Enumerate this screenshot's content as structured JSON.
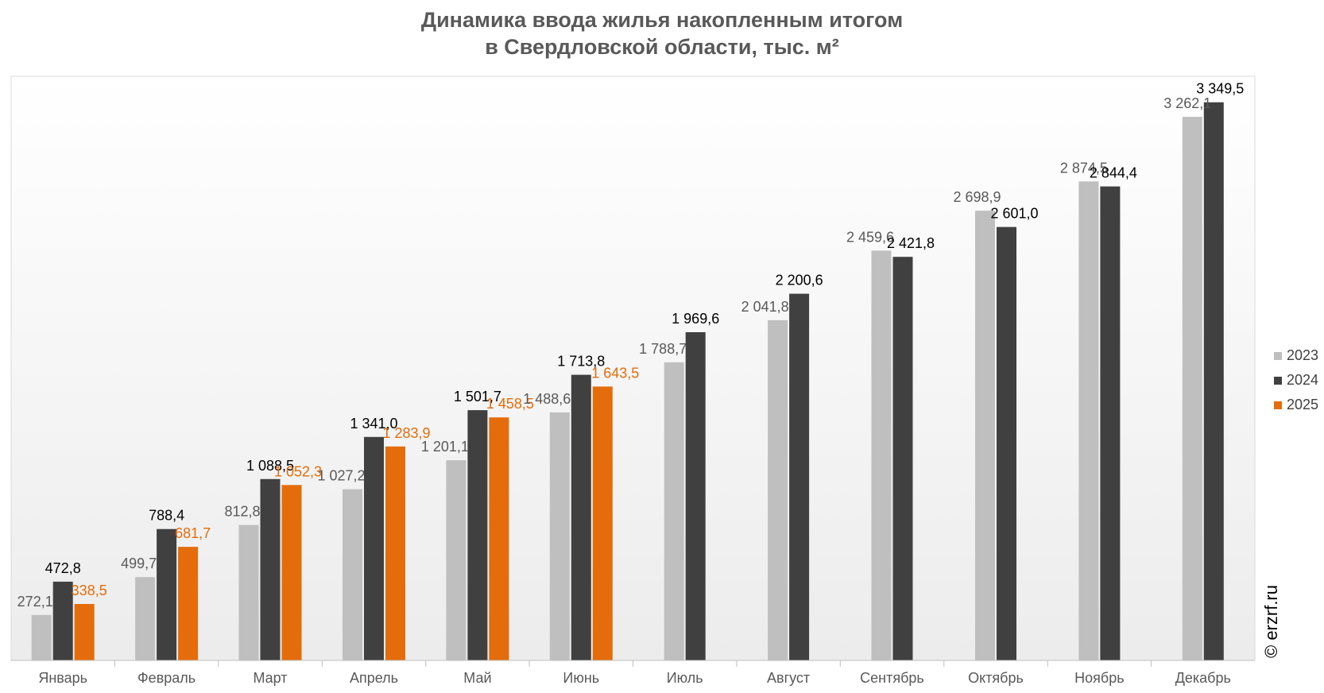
{
  "title_lines": [
    "Динамика ввода жилья накопленным итогом",
    "в Свердловской области, тыс. м²"
  ],
  "watermark": "© erzrf.ru",
  "chart_data": {
    "type": "bar",
    "categories": [
      "Январь",
      "Февраль",
      "Март",
      "Апрель",
      "Май",
      "Июнь",
      "Июль",
      "Август",
      "Сентябрь",
      "Октябрь",
      "Ноябрь",
      "Декабрь"
    ],
    "series": [
      {
        "name": "2023",
        "color": "#bfbfbf",
        "label_color": "#595959",
        "values": [
          272.1,
          499.7,
          812.8,
          1027.2,
          1201.1,
          1488.6,
          1788.7,
          2041.8,
          2459.6,
          2698.9,
          2874.5,
          3262.1
        ],
        "labels": [
          "272,1",
          "499,7",
          "812,8",
          "1 027,2",
          "1 201,1",
          "1 488,6",
          "1 788,7",
          "2 041,8",
          "2 459,6",
          "2 698,9",
          "2 874,5",
          "3 262,1"
        ]
      },
      {
        "name": "2024",
        "color": "#404040",
        "label_color": "#000000",
        "values": [
          472.8,
          788.4,
          1088.5,
          1341.0,
          1501.7,
          1713.8,
          1969.6,
          2200.6,
          2421.8,
          2601.0,
          2844.4,
          3349.5
        ],
        "labels": [
          "472,8",
          "788,4",
          "1 088,5",
          "1 341,0",
          "1 501,7",
          "1 713,8",
          "1 969,6",
          "2 200,6",
          "2 421,8",
          "2 601,0",
          "2 844,4",
          "3 349,5"
        ]
      },
      {
        "name": "2025",
        "color": "#e46c0a",
        "label_color": "#e46c0a",
        "values": [
          338.5,
          681.7,
          1052.3,
          1283.9,
          1458.5,
          1643.5,
          null,
          null,
          null,
          null,
          null,
          null
        ],
        "labels": [
          "338,5",
          "681,7",
          "1 052,3",
          "1 283,9",
          "1 458,5",
          "1 643,5",
          "",
          "",
          "",
          "",
          "",
          ""
        ]
      }
    ],
    "ylim": [
      0,
      3500
    ],
    "grid": false,
    "legend_position": "right",
    "xlabel": "",
    "ylabel": ""
  }
}
